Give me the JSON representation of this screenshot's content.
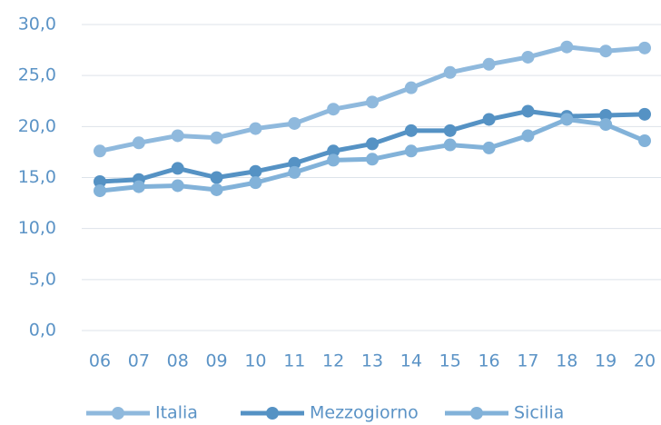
{
  "chart_data": {
    "type": "line",
    "categories": [
      "06",
      "07",
      "08",
      "09",
      "10",
      "11",
      "12",
      "13",
      "14",
      "15",
      "16",
      "17",
      "18",
      "19",
      "20"
    ],
    "series": [
      {
        "name": "Italia",
        "color": "#8fb9dd",
        "values": [
          17.6,
          18.4,
          19.1,
          18.9,
          19.8,
          20.3,
          21.7,
          22.4,
          23.8,
          25.3,
          26.1,
          26.8,
          27.8,
          27.4,
          27.7
        ]
      },
      {
        "name": "Mezzogiorno",
        "color": "#5592c4",
        "values": [
          14.6,
          14.8,
          15.9,
          15.0,
          15.6,
          16.4,
          17.6,
          18.3,
          19.6,
          19.6,
          20.7,
          21.5,
          21.0,
          21.1,
          21.2
        ]
      },
      {
        "name": "Sicilia",
        "color": "#82b2d9",
        "values": [
          13.7,
          14.1,
          14.2,
          13.8,
          14.5,
          15.5,
          16.7,
          16.8,
          17.6,
          18.2,
          17.9,
          19.1,
          20.7,
          20.2,
          18.6
        ]
      }
    ],
    "ylim": [
      0,
      30
    ],
    "yticks": [
      {
        "value": 0,
        "label": "0,0"
      },
      {
        "value": 5,
        "label": "5,0"
      },
      {
        "value": 10,
        "label": "10,0"
      },
      {
        "value": 15,
        "label": "15,0"
      },
      {
        "value": 20,
        "label": "20,0"
      },
      {
        "value": 25,
        "label": "25,0"
      },
      {
        "value": 30,
        "label": "30,0"
      }
    ],
    "grid": true,
    "legend": "bottom"
  }
}
